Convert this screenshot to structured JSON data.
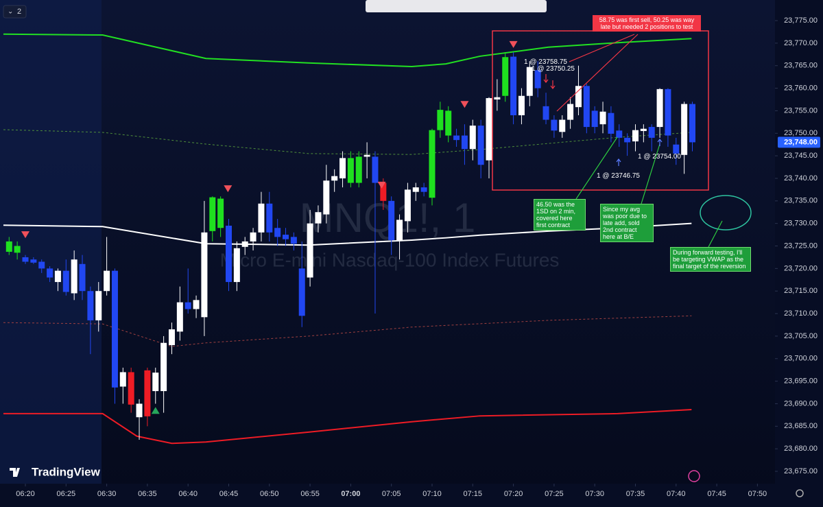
{
  "ui": {
    "layout_label": "2",
    "brand": "TradingView"
  },
  "chart_data": {
    "type": "candlestick",
    "title": "MNQ1!, 1",
    "subtitle": "Micro E-mini Nasdaq-100 Index Futures",
    "xlim": [
      -1.12,
      94.16
    ],
    "ylim": [
      23672.26,
      23779.57
    ],
    "xticks": [
      {
        "value": 2,
        "label": "06:20"
      },
      {
        "value": 7,
        "label": "06:25"
      },
      {
        "value": 12,
        "label": "06:30"
      },
      {
        "value": 17,
        "label": "06:35"
      },
      {
        "value": 22,
        "label": "06:40"
      },
      {
        "value": 27,
        "label": "06:45"
      },
      {
        "value": 32,
        "label": "06:50"
      },
      {
        "value": 37,
        "label": "06:55"
      },
      {
        "value": 42,
        "label": "07:00"
      },
      {
        "value": 47,
        "label": "07:05"
      },
      {
        "value": 52,
        "label": "07:10"
      },
      {
        "value": 57,
        "label": "07:15"
      },
      {
        "value": 62,
        "label": "07:20"
      },
      {
        "value": 67,
        "label": "07:25"
      },
      {
        "value": 72,
        "label": "07:30"
      },
      {
        "value": 77,
        "label": "07:35"
      },
      {
        "value": 82,
        "label": "07:40"
      },
      {
        "value": 87,
        "label": "07:45"
      },
      {
        "value": 92,
        "label": "07:50"
      }
    ],
    "yticks": [
      {
        "value": 23775,
        "label": "23,775.00"
      },
      {
        "value": 23770,
        "label": "23,770.00"
      },
      {
        "value": 23765,
        "label": "23,765.00"
      },
      {
        "value": 23760,
        "label": "23,760.00"
      },
      {
        "value": 23755,
        "label": "23,755.00"
      },
      {
        "value": 23750,
        "label": "23,750.00"
      },
      {
        "value": 23745,
        "label": "23,745.00"
      },
      {
        "value": 23740,
        "label": "23,740.00"
      },
      {
        "value": 23735,
        "label": "23,735.00"
      },
      {
        "value": 23730,
        "label": "23,730.00"
      },
      {
        "value": 23725,
        "label": "23,725.00"
      },
      {
        "value": 23720,
        "label": "23,720.00"
      },
      {
        "value": 23715,
        "label": "23,715.00"
      },
      {
        "value": 23710,
        "label": "23,710.00"
      },
      {
        "value": 23705,
        "label": "23,705.00"
      },
      {
        "value": 23700,
        "label": "23,700.00"
      },
      {
        "value": 23695,
        "label": "23,695.00"
      },
      {
        "value": 23690,
        "label": "23,690.00"
      },
      {
        "value": 23685,
        "label": "23,685.00"
      },
      {
        "value": 23680,
        "label": "23,680.00"
      },
      {
        "value": 23675,
        "label": "23,675.00"
      }
    ],
    "last_price": {
      "value": 23748,
      "label": "23,748.00"
    },
    "last_price_color": "#2962ff",
    "open": [
      23726,
      23725,
      23722.5,
      23722,
      23721.5,
      23720,
      23717,
      23719.5,
      23714.5,
      23721,
      23715,
      23708.5,
      23715,
      23719.5,
      23693.8,
      23697,
      23687,
      23697.4,
      23692.8,
      23692.8,
      23703,
      23706,
      23712.5,
      23711,
      23709.2,
      23728.3,
      23735.5,
      23729.5,
      23717,
      23724.8,
      23726,
      23728,
      23734.4,
      23729,
      23727.5,
      23727,
      23720,
      23718,
      23730,
      23732,
      23739.5,
      23740,
      23744.5,
      23739,
      23744.8,
      23744.8,
      23739,
      23735,
      23726.3,
      23730.5,
      23737,
      23738,
      23735.7,
      23750.7,
      23755,
      23749.5,
      23749.5,
      23746.5,
      23751.7,
      23744,
      23757.5,
      23758.3,
      23767,
      23754,
      23758.3,
      23764,
      23756,
      23753,
      23750.3,
      23753,
      23755.8,
      23760.5,
      23755,
      23752,
      23754.5,
      23750.6,
      23749,
      23748.2,
      23750.5,
      23751.4,
      23751.4,
      23759.8,
      23747.5,
      23745.2,
      23756.5
    ],
    "high": [
      23727,
      23726,
      23723,
      23722.5,
      23722,
      23720.5,
      23720,
      23722,
      23724,
      23723,
      23716,
      23717,
      23727,
      23720,
      23698,
      23698,
      23691,
      23698,
      23698,
      23705,
      23708,
      23716,
      23720,
      23714,
      23735,
      23736,
      23736,
      23731,
      23726,
      23727,
      23729,
      23737,
      23737,
      23731,
      23729,
      23728,
      23726,
      23733,
      23734,
      23743,
      23742,
      23746,
      23746,
      23746,
      23748,
      23746,
      23740,
      23736,
      23732,
      23739,
      23739,
      23739,
      23751,
      23757,
      23756,
      23751,
      23752,
      23753,
      23753,
      23758,
      23762,
      23768,
      23768,
      23760,
      23766,
      23766,
      23759,
      23754,
      23754,
      23758,
      23765,
      23761,
      23756,
      23757,
      23756,
      23752,
      23750,
      23752,
      23752,
      23752,
      23760,
      23760,
      23749,
      23757,
      23757
    ],
    "low": [
      23723,
      23722,
      23721,
      23721,
      23719,
      23717,
      23715,
      23714,
      23713,
      23713,
      23701,
      23706,
      23714,
      23690,
      23690,
      23688,
      23682,
      23685,
      23690,
      23688,
      23701,
      23704,
      23710,
      23709,
      23705,
      23726,
      23727,
      23715,
      23715,
      23723,
      23724,
      23726,
      23726,
      23725,
      23725,
      23724,
      23707,
      23716,
      23728,
      23730,
      23737,
      23738,
      23738,
      23738,
      23740,
      23710,
      23733,
      23723,
      23722,
      23728,
      23735,
      23736,
      23734,
      23749,
      23748,
      23747,
      23743,
      23744,
      23740,
      23740,
      23755,
      23757,
      23752,
      23752,
      23756,
      23758,
      23752,
      23749,
      23749,
      23751,
      23754,
      23750,
      23750,
      23750,
      23748,
      23747,
      23745,
      23746,
      23748,
      23746,
      23749,
      23747,
      23743,
      23741,
      23746
    ],
    "close": [
      23723.7,
      23723.5,
      23721.5,
      23721.3,
      23720,
      23718,
      23719.5,
      23714.8,
      23722,
      23715,
      23708.5,
      23715,
      23719.5,
      23693.6,
      23697,
      23689.8,
      23690,
      23687.2,
      23696.9,
      23703.5,
      23706.5,
      23712.5,
      23711,
      23713,
      23728,
      23735.8,
      23729,
      23717,
      23724.5,
      23726,
      23728,
      23734.4,
      23728,
      23727,
      23726.5,
      23725.5,
      23709.5,
      23730,
      23732.5,
      23739.5,
      23740.5,
      23744.5,
      23739,
      23744.8,
      23745.2,
      23739,
      23735,
      23726.3,
      23730.8,
      23737.5,
      23738,
      23737,
      23750.7,
      23755.2,
      23749.5,
      23748.5,
      23746.5,
      23751.7,
      23743,
      23757.8,
      23758,
      23766.9,
      23754,
      23758.3,
      23764.7,
      23760,
      23753,
      23750.6,
      23753,
      23756.5,
      23760.5,
      23751.4,
      23751.4,
      23754.8,
      23749.9,
      23749,
      23748,
      23750.7,
      23751,
      23749,
      23759.8,
      23749.5,
      23745.5,
      23756.5,
      23748
    ],
    "candle_colors": [
      "#1fe01f",
      "#1fe01f",
      "#2147f2",
      "#2147f2",
      "#2147f2",
      "#2147f2",
      "#ffffff",
      "#2147f2",
      "#ffffff",
      "#2147f2",
      "#2147f2",
      "#ffffff",
      "#ffffff",
      "#2147f2",
      "#ffffff",
      "#ee1c25",
      "#ffffff",
      "#ee1c25",
      "#ffffff",
      "#ffffff",
      "#ffffff",
      "#ffffff",
      "#2147f2",
      "#ffffff",
      "#ffffff",
      "#1fe01f",
      "#1fe01f",
      "#2147f2",
      "#ffffff",
      "#ffffff",
      "#ffffff",
      "#ffffff",
      "#2147f2",
      "#2147f2",
      "#2147f2",
      "#2147f2",
      "#2147f2",
      "#ffffff",
      "#ffffff",
      "#ffffff",
      "#ffffff",
      "#ffffff",
      "#1fe01f",
      "#1fe01f",
      "#ffffff",
      "#2147f2",
      "#ee1c25",
      "#2147f2",
      "#ffffff",
      "#ffffff",
      "#ffffff",
      "#2147f2",
      "#1fe01f",
      "#1fe01f",
      "#1fe01f",
      "#2147f2",
      "#2147f2",
      "#ffffff",
      "#2147f2",
      "#ffffff",
      "#ffffff",
      "#1fe01f",
      "#2147f2",
      "#ffffff",
      "#ffffff",
      "#2147f2",
      "#2147f2",
      "#2147f2",
      "#ffffff",
      "#ffffff",
      "#ffffff",
      "#2147f2",
      "#2147f2",
      "#ffffff",
      "#2147f2",
      "#2147f2",
      "#2147f2",
      "#ffffff",
      "#ffffff",
      "#2147f2",
      "#ffffff",
      "#2147f2",
      "#2147f2",
      "#ffffff",
      "#2147f2"
    ],
    "lines": [
      {
        "color": "#22e022",
        "dashed": false,
        "x": [
          -0.7,
          11.5,
          24.2,
          36.8,
          49.5,
          53.7,
          57.9,
          66.3,
          74.8,
          83.9
        ],
        "values": [
          23772,
          23771.8,
          23766.6,
          23765.6,
          23764.8,
          23765.4,
          23767.1,
          23769.1,
          23770.1,
          23771
        ]
      },
      {
        "color": "#ffffff",
        "dashed": false,
        "x": [
          -0.7,
          11.5,
          24.2,
          36.8,
          49.5,
          53.7,
          57.9,
          66.3,
          74.8,
          83.9
        ],
        "values": [
          23729.6,
          23729.3,
          23725.5,
          23725.2,
          23726.3,
          23726.8,
          23727.4,
          23728.3,
          23729,
          23730
        ]
      },
      {
        "color": "#ee1c25",
        "dashed": false,
        "x": [
          -0.7,
          11.5,
          15.7,
          20,
          24.2,
          36.8,
          49.5,
          57.9,
          74.8,
          83.9
        ],
        "values": [
          23687.8,
          23687.8,
          23682.8,
          23681.2,
          23681.5,
          23683.7,
          23686,
          23687.3,
          23687.8,
          23688.7
        ]
      },
      {
        "color": "#4f8f3a",
        "dashed": true,
        "x": [
          -0.7,
          11.5,
          24.2,
          36.8,
          49.5,
          57.9,
          74.8,
          83.9
        ],
        "values": [
          23750.8,
          23750.2,
          23747.6,
          23745.5,
          23745.3,
          23746.4,
          23749.1,
          23750.2
        ]
      },
      {
        "color": "#a04040",
        "dashed": true,
        "x": [
          -0.7,
          11.5,
          20,
          24.2,
          36.8,
          49.5,
          66.3,
          83.9
        ],
        "values": [
          23708,
          23707.7,
          23702.7,
          23703.5,
          23705,
          23707,
          23708.5,
          23709.5
        ]
      }
    ],
    "sell_signals": {
      "color": "#f0505a",
      "x": [
        2,
        26.9,
        45.8,
        56,
        62
      ],
      "y": [
        23727.5,
        23737.7,
        23738.5,
        23756.4,
        23769.7
      ]
    },
    "buy_signals": {
      "color": "#26a65b",
      "x": [
        18
      ],
      "y": [
        23688.5
      ]
    },
    "annotations": {
      "trade_labels": [
        "1 @ 23758.75",
        "1 @ 23750.25",
        "1 @ 23746.75",
        "1 @ 23754.00"
      ],
      "red_note": "58.75 was first sell, 50.25 was way late but needed 2 positions to test",
      "green_notes": [
        "46.50 was the 1SD on 2 min, covered here first contract",
        "Since my avg was poor due to late add, sold 2nd contract here at B/E",
        "During forward testing, I'll be targeting VWAP as the final target of the reversion"
      ]
    }
  }
}
